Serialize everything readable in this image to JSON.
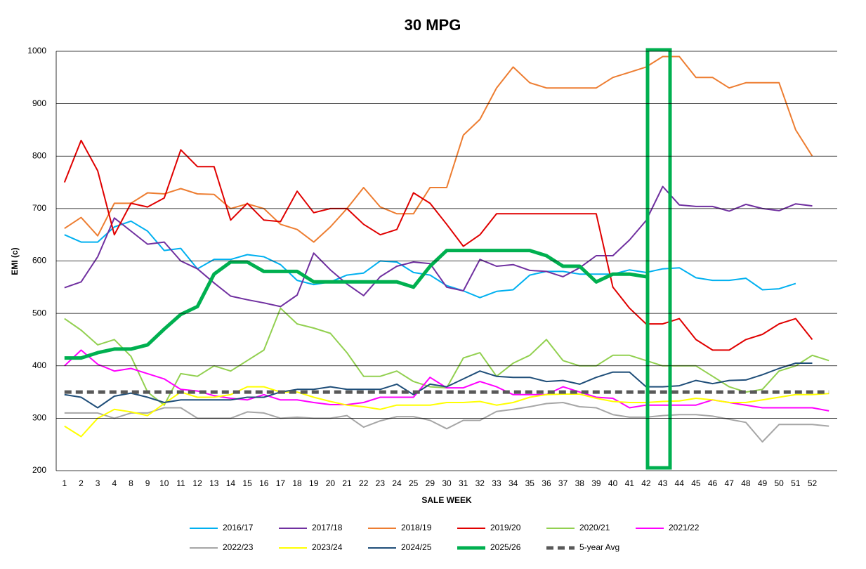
{
  "chart_data": {
    "type": "line",
    "title": "30 MPG",
    "x_label": "SALE WEEK",
    "y_label": "EMI (c)",
    "categories": [
      1,
      2,
      3,
      4,
      8,
      9,
      10,
      11,
      12,
      13,
      14,
      15,
      16,
      17,
      18,
      19,
      20,
      21,
      22,
      23,
      24,
      25,
      29,
      30,
      31,
      32,
      33,
      34,
      35,
      36,
      37,
      38,
      39,
      40,
      41,
      42,
      43,
      44,
      45,
      46,
      47,
      48,
      49,
      50,
      51,
      52,
      null
    ],
    "ylim": [
      200,
      1000
    ],
    "yticks": [
      200,
      300,
      400,
      500,
      600,
      700,
      800,
      900,
      1000
    ],
    "grid": true,
    "legend": "bottom",
    "series": [
      {
        "name": "2016/17",
        "color": "#00b0f0",
        "width": 2,
        "values": [
          650,
          636,
          636,
          665,
          676,
          657,
          620,
          624,
          585,
          603,
          603,
          612,
          608,
          593,
          563,
          555,
          560,
          573,
          577,
          600,
          598,
          578,
          573,
          553,
          543,
          530,
          542,
          545,
          573,
          580,
          580,
          575,
          575,
          575,
          583,
          578,
          585,
          587,
          568,
          563,
          563,
          567,
          545,
          547,
          557,
          null,
          null
        ]
      },
      {
        "name": "2017/18",
        "color": "#7030a0",
        "width": 2,
        "values": [
          549,
          560,
          608,
          682,
          657,
          632,
          636,
          600,
          585,
          558,
          533,
          526,
          520,
          513,
          535,
          615,
          583,
          556,
          534,
          570,
          590,
          598,
          595,
          550,
          543,
          603,
          590,
          593,
          582,
          580,
          570,
          587,
          610,
          610,
          640,
          677,
          742,
          707,
          704,
          704,
          695,
          708,
          700,
          696,
          709,
          705,
          null
        ]
      },
      {
        "name": "2018/19",
        "color": "#ed7d31",
        "width": 2,
        "values": [
          662,
          683,
          648,
          710,
          710,
          730,
          728,
          738,
          728,
          727,
          700,
          709,
          700,
          670,
          660,
          636,
          665,
          700,
          740,
          703,
          690,
          690,
          740,
          740,
          840,
          870,
          930,
          970,
          940,
          930,
          930,
          930,
          930,
          950,
          960,
          970,
          990,
          990,
          950,
          950,
          930,
          940,
          940,
          940,
          850,
          800,
          null
        ]
      },
      {
        "name": "2019/20",
        "color": "#e00000",
        "width": 2,
        "values": [
          750,
          830,
          772,
          650,
          710,
          703,
          720,
          812,
          780,
          780,
          678,
          710,
          678,
          675,
          733,
          692,
          700,
          700,
          670,
          650,
          660,
          730,
          710,
          670,
          628,
          650,
          690,
          690,
          690,
          690,
          690,
          690,
          690,
          550,
          510,
          480,
          480,
          490,
          450,
          430,
          430,
          450,
          460,
          480,
          490,
          450,
          null
        ]
      },
      {
        "name": "2020/21",
        "color": "#92d050",
        "width": 2,
        "values": [
          490,
          468,
          440,
          450,
          418,
          350,
          325,
          385,
          380,
          400,
          390,
          410,
          430,
          510,
          480,
          472,
          462,
          425,
          380,
          380,
          390,
          370,
          360,
          358,
          415,
          425,
          380,
          405,
          420,
          450,
          410,
          400,
          400,
          420,
          420,
          410,
          400,
          400,
          400,
          380,
          360,
          350,
          355,
          390,
          400,
          420,
          410
        ]
      },
      {
        "name": "2021/22",
        "color": "#ff00ff",
        "width": 2,
        "values": [
          400,
          430,
          403,
          390,
          395,
          385,
          375,
          355,
          352,
          343,
          338,
          335,
          345,
          335,
          335,
          330,
          326,
          326,
          330,
          340,
          340,
          340,
          378,
          358,
          358,
          370,
          360,
          345,
          345,
          345,
          360,
          350,
          340,
          338,
          320,
          325,
          325,
          325,
          325,
          335,
          330,
          325,
          320,
          320,
          320,
          320,
          314
        ]
      },
      {
        "name": "2022/23",
        "color": "#a6a6a6",
        "width": 2,
        "values": [
          310,
          310,
          310,
          300,
          310,
          310,
          320,
          320,
          300,
          300,
          300,
          312,
          310,
          300,
          302,
          300,
          300,
          305,
          283,
          295,
          303,
          303,
          296,
          280,
          296,
          296,
          313,
          317,
          322,
          328,
          330,
          322,
          320,
          307,
          302,
          302,
          305,
          307,
          307,
          304,
          298,
          292,
          255,
          288,
          288,
          288,
          285
        ]
      },
      {
        "name": "2023/24",
        "color": "#ffff00",
        "width": 2,
        "values": [
          285,
          265,
          300,
          317,
          312,
          305,
          328,
          350,
          340,
          340,
          345,
          360,
          360,
          350,
          350,
          340,
          332,
          325,
          322,
          317,
          325,
          325,
          325,
          330,
          330,
          332,
          325,
          330,
          340,
          345,
          346,
          346,
          338,
          332,
          330,
          330,
          332,
          333,
          338,
          335,
          330,
          330,
          335,
          340,
          345,
          345,
          347
        ]
      },
      {
        "name": "2024/25",
        "color": "#1f4e79",
        "width": 2,
        "values": [
          345,
          340,
          320,
          342,
          348,
          340,
          330,
          335,
          335,
          335,
          335,
          340,
          340,
          350,
          355,
          355,
          360,
          355,
          355,
          355,
          365,
          345,
          365,
          360,
          375,
          390,
          380,
          378,
          378,
          370,
          372,
          365,
          378,
          388,
          388,
          360,
          360,
          362,
          372,
          366,
          372,
          373,
          383,
          395,
          405,
          405,
          null
        ]
      },
      {
        "name": "2025/26",
        "color": "#00b050",
        "width": 5,
        "values": [
          415,
          415,
          425,
          432,
          432,
          440,
          470,
          498,
          513,
          575,
          598,
          598,
          580,
          580,
          580,
          560,
          560,
          560,
          560,
          560,
          560,
          550,
          590,
          620,
          620,
          620,
          620,
          620,
          620,
          610,
          590,
          590,
          560,
          575,
          575,
          570,
          null,
          null,
          null,
          null,
          null,
          null,
          null,
          null,
          null,
          null,
          null
        ]
      },
      {
        "name": "5-year Avg",
        "color": "#595959",
        "width": 5,
        "dashed": true,
        "values": [
          350,
          350,
          350,
          350,
          350,
          350,
          350,
          350,
          350,
          350,
          350,
          350,
          350,
          350,
          350,
          350,
          350,
          350,
          350,
          350,
          350,
          350,
          350,
          350,
          350,
          350,
          350,
          350,
          350,
          350,
          350,
          350,
          350,
          350,
          350,
          350,
          350,
          350,
          350,
          350,
          350,
          350,
          350,
          350,
          350,
          350,
          350
        ]
      }
    ]
  }
}
